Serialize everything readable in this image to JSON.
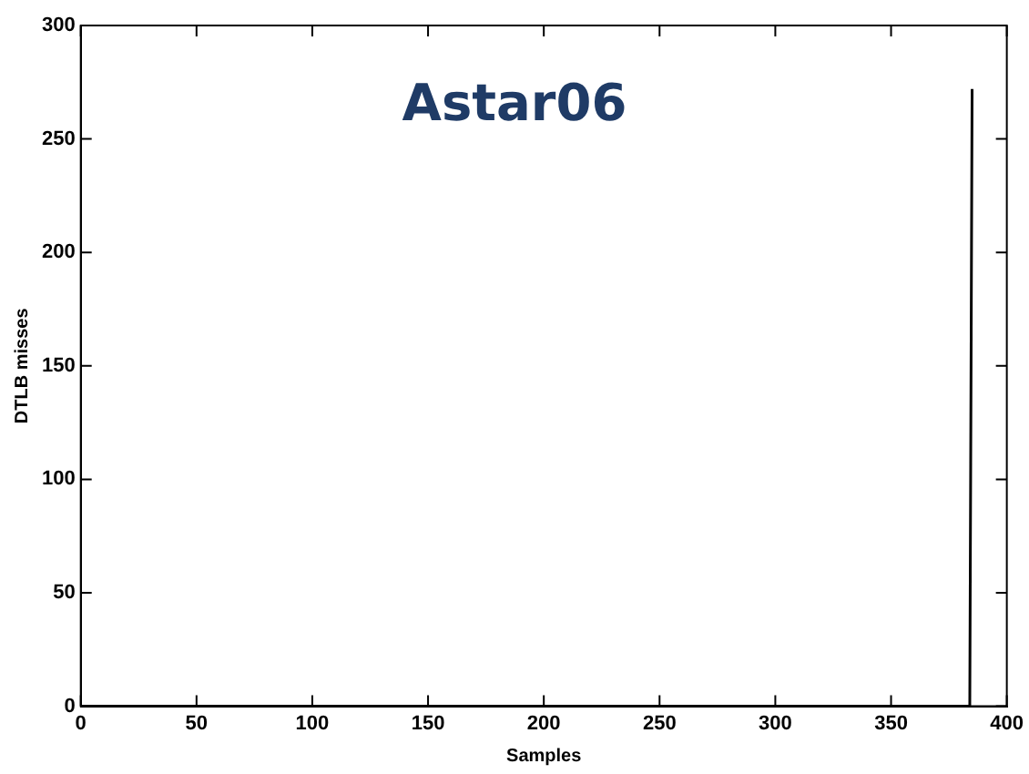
{
  "chart_data": {
    "type": "line",
    "title": "Astar06",
    "xlabel": "Samples",
    "ylabel": "DTLB misses",
    "x": [
      0,
      384,
      385
    ],
    "series": [
      {
        "color": "#000000",
        "values": [
          0,
          0,
          272
        ]
      }
    ],
    "xlim": [
      0,
      400
    ],
    "xticks": [
      0,
      50,
      100,
      150,
      200,
      250,
      300,
      350,
      400
    ],
    "ylim": [
      0,
      300
    ],
    "yticks": [
      0,
      50,
      100,
      150,
      200,
      250,
      300
    ],
    "grid": false,
    "legend": false,
    "marker": "none",
    "line_style": "solid"
  }
}
